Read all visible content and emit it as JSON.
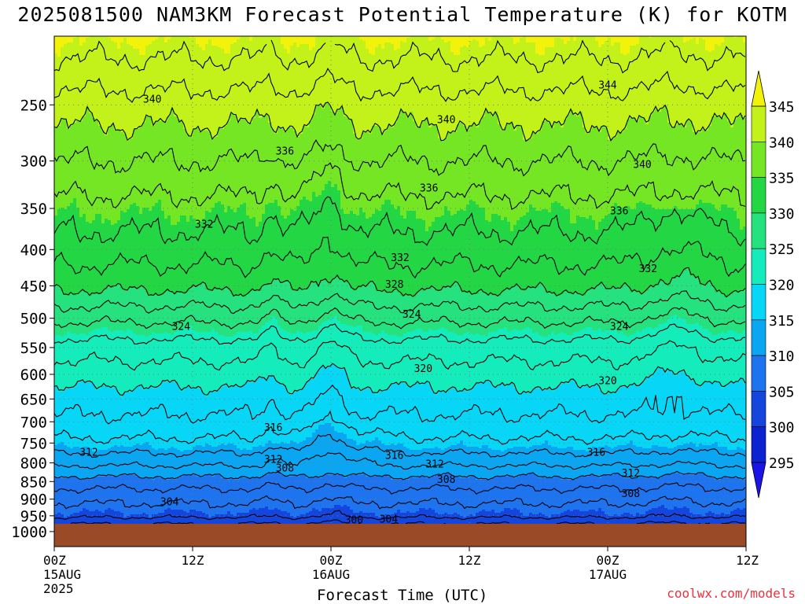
{
  "title": "2025081500 NAM3KM Forecast Potential Temperature (K) for KOTM",
  "credit": "coolwx.com/models",
  "colors": {
    "ground": "#9a4a27",
    "contour": "#000000",
    "grid": "#7a7a7a"
  },
  "chart_data": {
    "type": "heatmap",
    "title": "2025081500 NAM3KM Forecast Potential Temperature (K) for KOTM",
    "xlabel": "Forecast Time (UTC)",
    "ylabel": "",
    "x_ticks": [
      {
        "hour": 0,
        "label": "00Z",
        "sub": "15AUG",
        "sub2": "2025"
      },
      {
        "hour": 12,
        "label": "12Z",
        "sub": "",
        "sub2": ""
      },
      {
        "hour": 24,
        "label": "00Z",
        "sub": "16AUG",
        "sub2": ""
      },
      {
        "hour": 36,
        "label": "12Z",
        "sub": "",
        "sub2": ""
      },
      {
        "hour": 48,
        "label": "00Z",
        "sub": "17AUG",
        "sub2": ""
      },
      {
        "hour": 60,
        "label": "12Z",
        "sub": "",
        "sub2": ""
      }
    ],
    "x_range_hours": [
      0,
      60
    ],
    "y_axis": "pressure (hPa), log scale, inverted",
    "y_range": [
      200,
      1050
    ],
    "y_ticks": [
      250,
      300,
      350,
      400,
      450,
      500,
      550,
      600,
      650,
      700,
      750,
      800,
      850,
      900,
      950,
      1000
    ],
    "surface_pressure": 975,
    "color_scale": {
      "levels": [
        295,
        300,
        305,
        310,
        315,
        320,
        325,
        330,
        335,
        340,
        345
      ],
      "colors": [
        "#1a14e6",
        "#0c22d0",
        "#1446de",
        "#1e74ee",
        "#0ba6f2",
        "#08d6f6",
        "#14ecbc",
        "#26e27e",
        "#22d644",
        "#74e624",
        "#c2f21a",
        "#f2f20a"
      ]
    },
    "profile": [
      {
        "p": 200,
        "theta": 345.2
      },
      {
        "p": 220,
        "theta": 343.6
      },
      {
        "p": 250,
        "theta": 341.0
      },
      {
        "p": 300,
        "theta": 338.0
      },
      {
        "p": 350,
        "theta": 335.2
      },
      {
        "p": 400,
        "theta": 333.0
      },
      {
        "p": 450,
        "theta": 330.5
      },
      {
        "p": 500,
        "theta": 326.5
      },
      {
        "p": 550,
        "theta": 323.0
      },
      {
        "p": 600,
        "theta": 321.0
      },
      {
        "p": 650,
        "theta": 319.0
      },
      {
        "p": 700,
        "theta": 317.5
      },
      {
        "p": 750,
        "theta": 315.5
      },
      {
        "p": 800,
        "theta": 312.5
      },
      {
        "p": 850,
        "theta": 309.0
      },
      {
        "p": 900,
        "theta": 306.5
      },
      {
        "p": 950,
        "theta": 304.5
      },
      {
        "p": 975,
        "theta": 302.0
      }
    ],
    "contour_levels": [
      300,
      302,
      304,
      306,
      308,
      310,
      312,
      314,
      316,
      318,
      320,
      322,
      324,
      326,
      328,
      330,
      332,
      334,
      336,
      338,
      340,
      342,
      344,
      346
    ],
    "contour_labels": [
      {
        "text": "340",
        "hour": 8.5,
        "p": 245
      },
      {
        "text": "340",
        "hour": 34,
        "p": 262
      },
      {
        "text": "344",
        "hour": 48,
        "p": 234
      },
      {
        "text": "340",
        "hour": 51,
        "p": 303
      },
      {
        "text": "336",
        "hour": 20,
        "p": 290
      },
      {
        "text": "336",
        "hour": 32.5,
        "p": 327
      },
      {
        "text": "336",
        "hour": 49,
        "p": 352
      },
      {
        "text": "332",
        "hour": 13,
        "p": 368
      },
      {
        "text": "332",
        "hour": 30,
        "p": 410
      },
      {
        "text": "332",
        "hour": 51.5,
        "p": 425
      },
      {
        "text": "328",
        "hour": 29.5,
        "p": 447
      },
      {
        "text": "324",
        "hour": 11,
        "p": 513
      },
      {
        "text": "324",
        "hour": 31,
        "p": 493
      },
      {
        "text": "324",
        "hour": 49,
        "p": 513
      },
      {
        "text": "320",
        "hour": 32,
        "p": 588
      },
      {
        "text": "320",
        "hour": 48,
        "p": 612
      },
      {
        "text": "316",
        "hour": 19,
        "p": 712
      },
      {
        "text": "316",
        "hour": 29.5,
        "p": 780
      },
      {
        "text": "316",
        "hour": 47,
        "p": 772
      },
      {
        "text": "312",
        "hour": 3,
        "p": 772
      },
      {
        "text": "312",
        "hour": 19,
        "p": 790
      },
      {
        "text": "312",
        "hour": 33,
        "p": 802
      },
      {
        "text": "312",
        "hour": 50,
        "p": 826
      },
      {
        "text": "308",
        "hour": 20,
        "p": 812
      },
      {
        "text": "308",
        "hour": 34,
        "p": 843
      },
      {
        "text": "308",
        "hour": 50,
        "p": 882
      },
      {
        "text": "304",
        "hour": 10,
        "p": 907
      },
      {
        "text": "304",
        "hour": 29,
        "p": 959
      },
      {
        "text": "300",
        "hour": 26,
        "p": 962
      }
    ]
  }
}
